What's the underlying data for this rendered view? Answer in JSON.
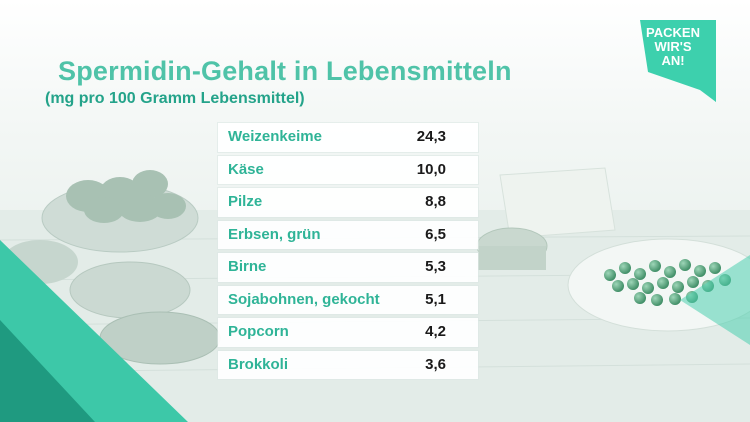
{
  "header": {
    "title": "Spermidin-Gehalt in Lebensmitteln",
    "subtitle": "(mg pro 100 Gramm Lebensmittel)"
  },
  "badge": {
    "lines": [
      "PACKEN",
      "WIR'S",
      "AN!"
    ]
  },
  "colors": {
    "accent": "#4fc3a8",
    "accent_dark": "#24a38a",
    "value_text": "#1a1a1a"
  },
  "chart_data": {
    "type": "table",
    "title": "Spermidin-Gehalt in Lebensmitteln",
    "subtitle": "(mg pro 100 Gramm Lebensmittel)",
    "rows": [
      {
        "name": "Weizenkeime",
        "value": "24,3"
      },
      {
        "name": "Käse",
        "value": "10,0"
      },
      {
        "name": "Pilze",
        "value": "8,8"
      },
      {
        "name": "Erbsen, grün",
        "value": "6,5"
      },
      {
        "name": "Birne",
        "value": "5,3"
      },
      {
        "name": "Sojabohnen, gekocht",
        "value": "5,1"
      },
      {
        "name": "Popcorn",
        "value": "4,2"
      },
      {
        "name": "Brokkoli",
        "value": "3,6"
      }
    ]
  }
}
